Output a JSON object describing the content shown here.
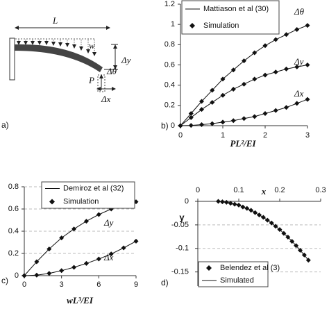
{
  "diagram": {
    "panel": "a)",
    "L": "L",
    "w": "w",
    "dy": "Δy",
    "dtheta": "Δθ",
    "P": "P",
    "dx": "Δx"
  },
  "chart_data": [
    {
      "type": "line",
      "panel": "b)",
      "xlabel": "PL²/EI",
      "x": [
        0,
        0.25,
        0.5,
        0.75,
        1,
        1.25,
        1.5,
        1.75,
        2,
        2.25,
        2.5,
        2.75,
        3
      ],
      "legend": [
        {
          "name": "Mattiason et al (30)",
          "style": "line"
        },
        {
          "name": "Simulation",
          "style": "markers"
        }
      ],
      "series": [
        {
          "label": "Δθ",
          "style": "line+markers",
          "values": [
            0,
            0.12,
            0.24,
            0.35,
            0.46,
            0.55,
            0.64,
            0.72,
            0.79,
            0.85,
            0.9,
            0.95,
            0.99
          ]
        },
        {
          "label": "Δy",
          "style": "line+markers",
          "values": [
            0,
            0.08,
            0.16,
            0.23,
            0.3,
            0.36,
            0.41,
            0.46,
            0.5,
            0.53,
            0.56,
            0.58,
            0.6
          ]
        },
        {
          "label": "Δx",
          "style": "line+markers",
          "values": [
            0,
            0.003,
            0.01,
            0.02,
            0.035,
            0.05,
            0.07,
            0.09,
            0.12,
            0.15,
            0.18,
            0.22,
            0.26
          ]
        }
      ],
      "xlim": [
        0,
        3
      ],
      "xticks": [
        0,
        1,
        2,
        3
      ],
      "ylim": [
        0,
        1.2
      ],
      "yticks": [
        0,
        0.2,
        0.4,
        0.6,
        0.8,
        1,
        1.2
      ],
      "grid": false
    },
    {
      "type": "line",
      "panel": "c)",
      "xlabel": "wL³/EI",
      "x": [
        0,
        1,
        2,
        3,
        4,
        5,
        6,
        7,
        8,
        9
      ],
      "legend": [
        {
          "name": "Demiroz et al (32)",
          "style": "line"
        },
        {
          "name": "Simulation",
          "style": "markers"
        }
      ],
      "series": [
        {
          "label": "Δy",
          "style": "line+markers",
          "values": [
            0,
            0.125,
            0.24,
            0.34,
            0.42,
            0.49,
            0.55,
            0.6,
            0.635,
            0.665
          ]
        },
        {
          "label": "Δx",
          "style": "line+markers",
          "values": [
            0,
            0.005,
            0.02,
            0.045,
            0.075,
            0.11,
            0.15,
            0.195,
            0.25,
            0.31
          ]
        }
      ],
      "xlim": [
        0,
        9
      ],
      "xticks": [
        0,
        3,
        6,
        9
      ],
      "ylim": [
        0,
        0.8
      ],
      "yticks": [
        0,
        0.2,
        0.4,
        0.6,
        0.8
      ],
      "grid": true
    },
    {
      "type": "line",
      "panel": "d)",
      "xlabel": "x",
      "ylabel": "y",
      "x": [
        0.05,
        0.06,
        0.07,
        0.08,
        0.09,
        0.1,
        0.11,
        0.12,
        0.13,
        0.14,
        0.15,
        0.16,
        0.17,
        0.18,
        0.19,
        0.2,
        0.21,
        0.22,
        0.23,
        0.24,
        0.25,
        0.26,
        0.27
      ],
      "series": [
        {
          "name": "Belendez et al (3)",
          "style": "markers",
          "values": [
            0,
            -0.001,
            -0.002,
            -0.004,
            -0.006,
            -0.008,
            -0.012,
            -0.015,
            -0.019,
            -0.024,
            -0.029,
            -0.034,
            -0.04,
            -0.046,
            -0.053,
            -0.06,
            -0.068,
            -0.076,
            -0.085,
            -0.094,
            -0.104,
            -0.114,
            -0.125
          ]
        },
        {
          "name": "Simulated",
          "style": "line",
          "values": [
            0,
            -0.001,
            -0.002,
            -0.004,
            -0.006,
            -0.008,
            -0.012,
            -0.015,
            -0.019,
            -0.024,
            -0.029,
            -0.034,
            -0.04,
            -0.046,
            -0.053,
            -0.06,
            -0.068,
            -0.076,
            -0.085,
            -0.094,
            -0.104,
            -0.114,
            -0.125
          ]
        }
      ],
      "xlim": [
        0,
        0.3
      ],
      "xticks": [
        0,
        0.1,
        0.2,
        0.3
      ],
      "ylim": [
        -0.18,
        0
      ],
      "yticks": [
        0,
        -0.05,
        -0.1,
        -0.15
      ],
      "grid": true,
      "x_axis_position": "top"
    }
  ]
}
